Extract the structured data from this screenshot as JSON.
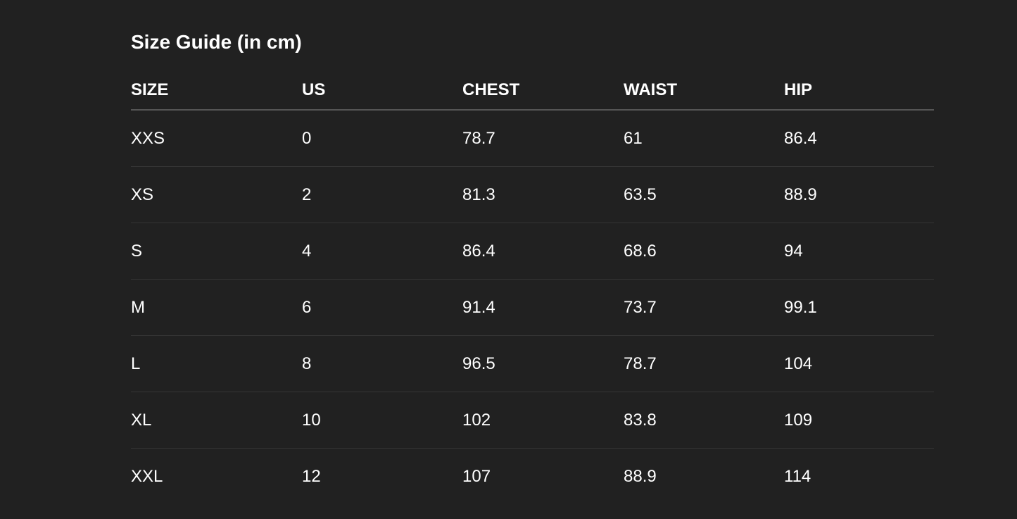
{
  "title": "Size Guide (in cm)",
  "columns": [
    "SIZE",
    "US",
    "CHEST",
    "WAIST",
    "HIP"
  ],
  "rows": [
    [
      "XXS",
      "0",
      "78.7",
      "61",
      "86.4"
    ],
    [
      "XS",
      "2",
      "81.3",
      "63.5",
      "88.9"
    ],
    [
      "S",
      "4",
      "86.4",
      "68.6",
      "94"
    ],
    [
      "M",
      "6",
      "91.4",
      "73.7",
      "99.1"
    ],
    [
      "L",
      "8",
      "96.5",
      "78.7",
      "104"
    ],
    [
      "XL",
      "10",
      "102",
      "83.8",
      "109"
    ],
    [
      "XXL",
      "12",
      "107",
      "88.9",
      "114"
    ]
  ],
  "colors": {
    "background": "#212121",
    "text": "#ffffff",
    "header_rule": "#555555",
    "row_rule": "#353535"
  }
}
